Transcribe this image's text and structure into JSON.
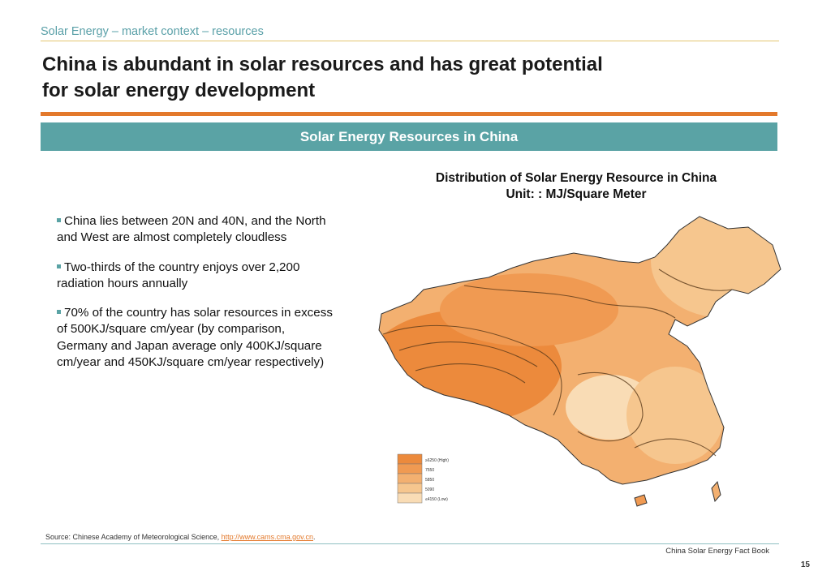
{
  "header": {
    "breadcrumb": "Solar Energy – market context – resources",
    "title_line1": "China is abundant in solar resources and has great potential",
    "title_line2": "for solar energy development"
  },
  "section": {
    "heading": "Solar Energy Resources in China"
  },
  "bullets": [
    "China lies between 20N and 40N, and the North and West are almost completely cloudless",
    "Two-thirds of the country enjoys over 2,200 radiation hours annually",
    "70% of the country has solar resources in excess of 500KJ/square cm/year (by comparison, Germany and Japan average only 400KJ/square cm/year and 450KJ/square cm/year respectively)"
  ],
  "map": {
    "title_line1": "Distribution of Solar Energy Resource in China",
    "title_line2": "Unit: : MJ/Square Meter",
    "legend": [
      {
        "label": "≥6250 (High)",
        "color": "#ec8a3c"
      },
      {
        "label": "7550",
        "color": "#f09a52"
      },
      {
        "label": "5850",
        "color": "#f3b070"
      },
      {
        "label": "5090",
        "color": "#f6c68e"
      },
      {
        "label": "≤4150 (Low)",
        "color": "#f9dcb5"
      }
    ]
  },
  "footer": {
    "source_prefix": "Source: Chinese Academy of Meteorological Science, ",
    "source_link": "http://www.cams.cma.gov.cn",
    "source_suffix": ".",
    "book": "China Solar Energy Fact Book",
    "page_number": "15"
  }
}
